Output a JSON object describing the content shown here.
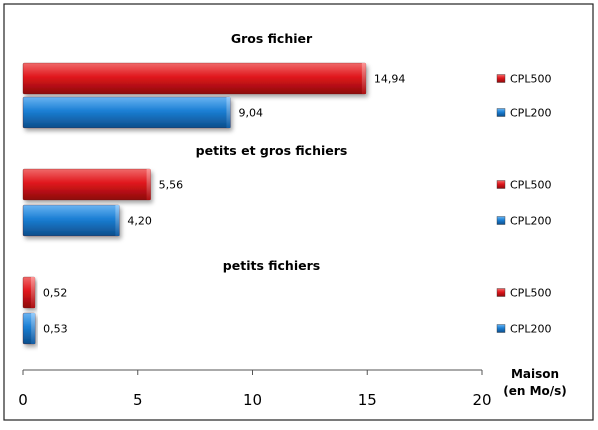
{
  "chart_data": {
    "type": "bar",
    "orientation": "horizontal",
    "groups": [
      {
        "title": "Gros fichier",
        "bars": [
          {
            "series": "CPL500",
            "value": 14.94,
            "label": "14,94"
          },
          {
            "series": "CPL200",
            "value": 9.04,
            "label": "9,04"
          }
        ]
      },
      {
        "title": "petits et gros fichiers",
        "bars": [
          {
            "series": "CPL500",
            "value": 5.56,
            "label": "5,56"
          },
          {
            "series": "CPL200",
            "value": 4.2,
            "label": "4,20"
          }
        ]
      },
      {
        "title": "petits fichiers",
        "bars": [
          {
            "series": "CPL500",
            "value": 0.52,
            "label": "0,52"
          },
          {
            "series": "CPL200",
            "value": 0.53,
            "label": "0,53"
          }
        ]
      }
    ],
    "series": [
      {
        "name": "CPL500",
        "color": "#e0161c"
      },
      {
        "name": "CPL200",
        "color": "#1b7fd4"
      }
    ],
    "xlim": [
      0,
      20
    ],
    "xticks": [
      0,
      5,
      10,
      15,
      20
    ],
    "xtick_labels": [
      "0",
      "5",
      "10",
      "15",
      "20"
    ],
    "xlabel": [
      "Maison",
      "(en Mo/s)"
    ],
    "grid": false,
    "legend": "per-bar, right"
  }
}
